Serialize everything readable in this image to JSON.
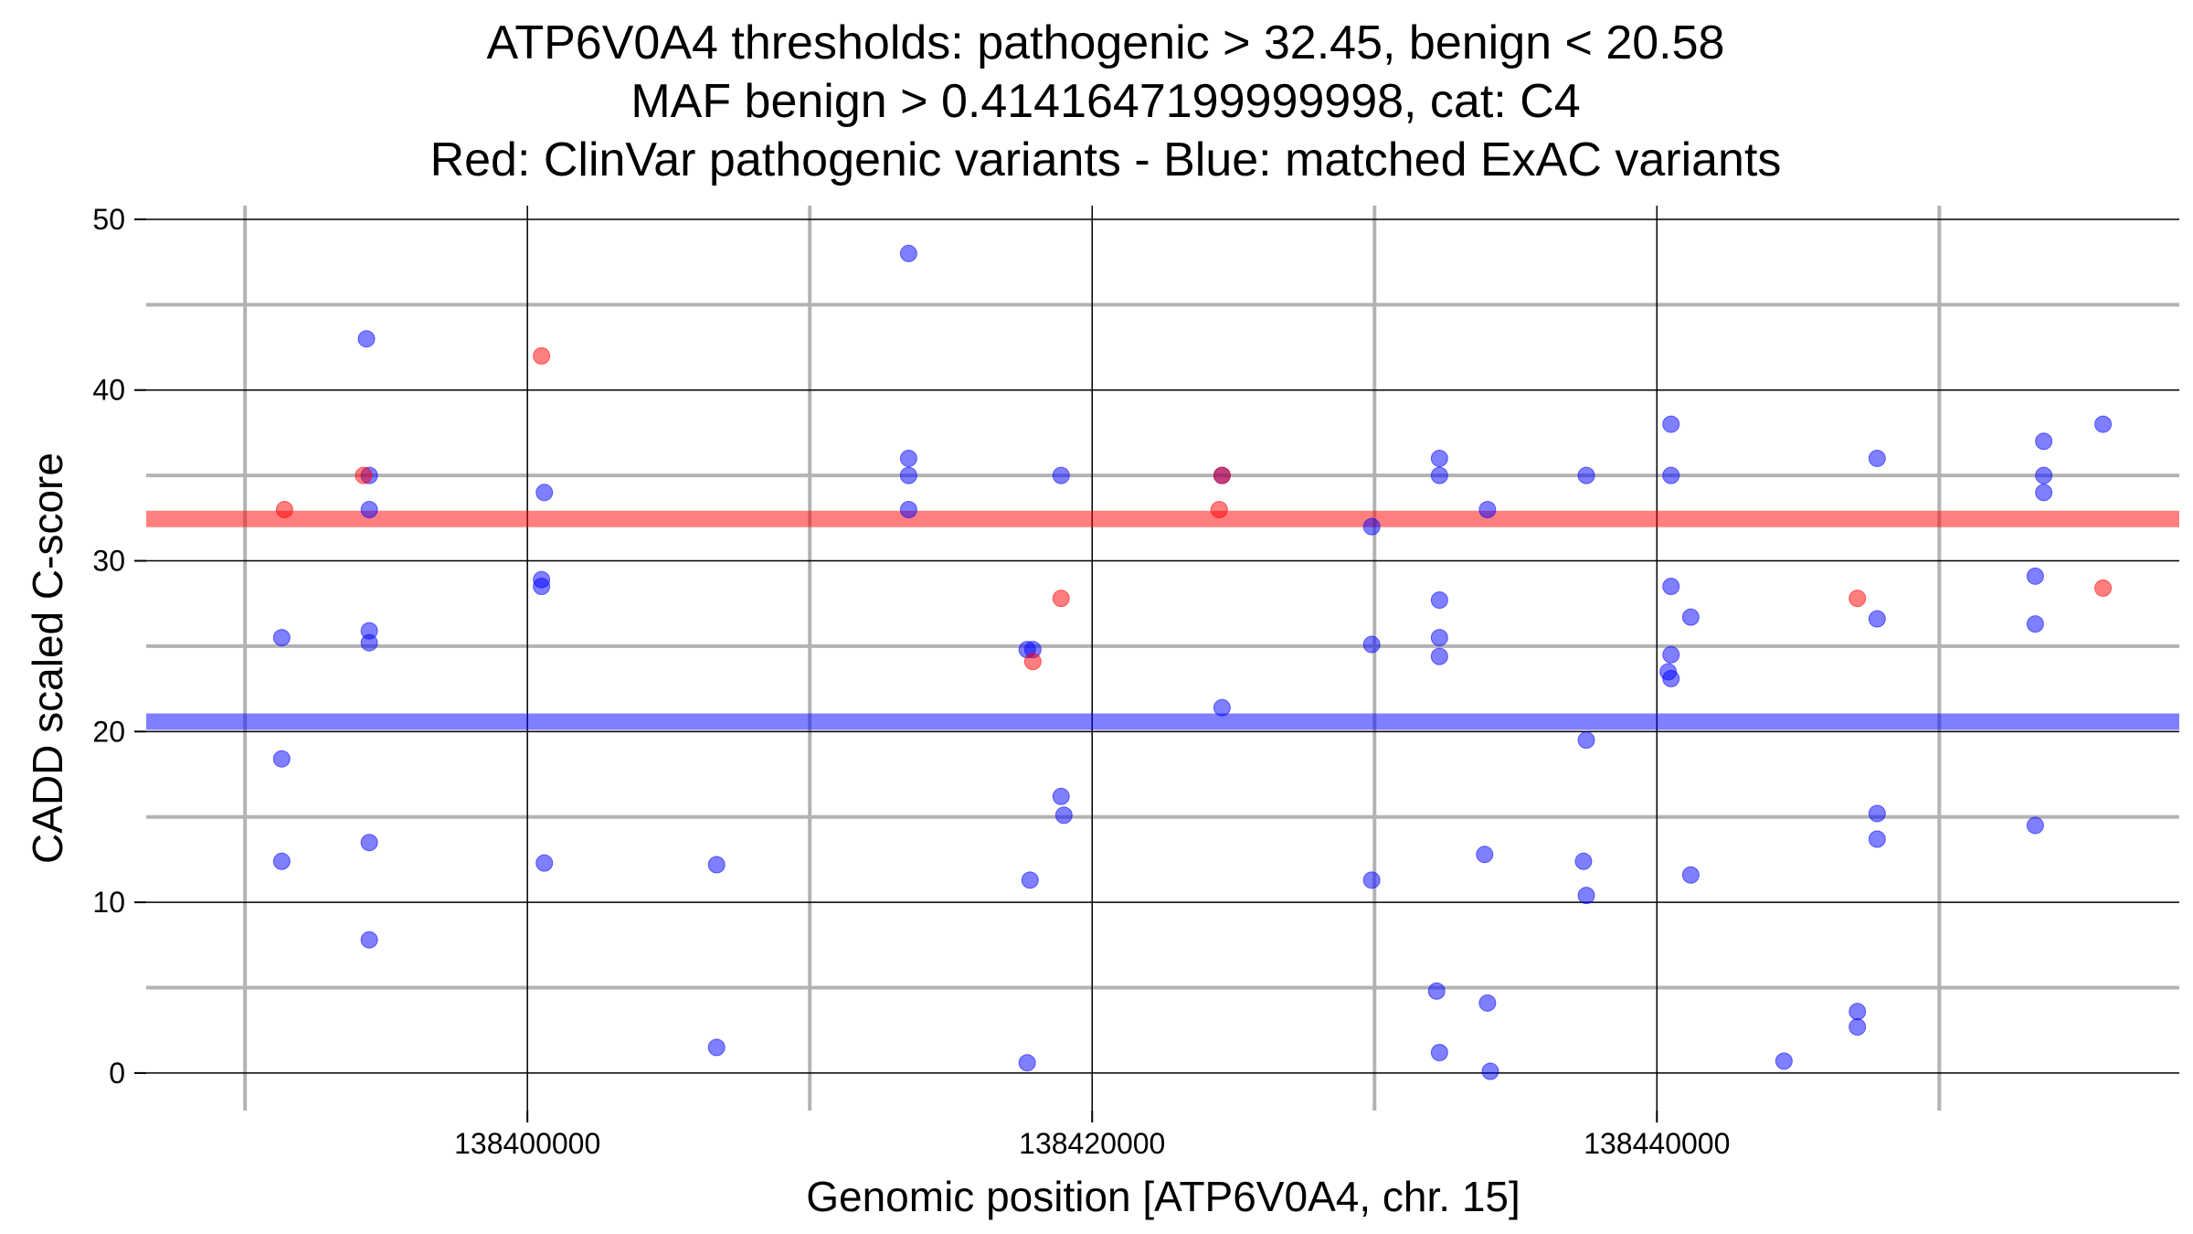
{
  "chart_data": {
    "type": "scatter",
    "title_lines": [
      "ATP6V0A4 thresholds: pathogenic > 32.45, benign < 20.58",
      "MAF benign > 0.4141647199999998, cat: C4",
      "Red: ClinVar pathogenic variants - Blue: matched ExAC variants"
    ],
    "xlabel": "Genomic position [ATP6V0A4, chr. 15]",
    "ylabel": "CADD scaled C-score",
    "xlim": [
      138386500,
      138458500
    ],
    "ylim": [
      -2.2,
      50.8
    ],
    "x_ticks": [
      138400000,
      138420000,
      138440000
    ],
    "x_tick_labels": [
      "138400000",
      "138420000",
      "138440000"
    ],
    "y_ticks": [
      0,
      10,
      20,
      30,
      40,
      50
    ],
    "y_tick_labels": [
      "0",
      "10",
      "20",
      "30",
      "40",
      "50"
    ],
    "x_minor_gridlines": [
      138390000,
      138410000,
      138430000,
      138450000
    ],
    "y_minor_gridlines": [
      5,
      15,
      25,
      35,
      45
    ],
    "grid": true,
    "thresholds": [
      {
        "value": 32.45,
        "color": "#ff0000"
      },
      {
        "value": 20.58,
        "color": "#0000ff"
      }
    ],
    "series": [
      {
        "color": "#0000ff",
        "points": [
          [
            138391300,
            25.5
          ],
          [
            138391300,
            18.4
          ],
          [
            138391300,
            12.4
          ],
          [
            138394300,
            43.0
          ],
          [
            138394400,
            35.0
          ],
          [
            138394400,
            33.0
          ],
          [
            138394400,
            25.9
          ],
          [
            138394400,
            25.2
          ],
          [
            138394400,
            13.5
          ],
          [
            138394400,
            7.8
          ],
          [
            138400600,
            34.0
          ],
          [
            138400500,
            28.9
          ],
          [
            138400500,
            28.5
          ],
          [
            138400600,
            12.3
          ],
          [
            138406700,
            12.2
          ],
          [
            138406700,
            1.5
          ],
          [
            138413500,
            48.0
          ],
          [
            138413500,
            36.0
          ],
          [
            138413500,
            35.0
          ],
          [
            138413500,
            33.0
          ],
          [
            138417700,
            24.8
          ],
          [
            138417900,
            24.8
          ],
          [
            138417800,
            11.3
          ],
          [
            138417700,
            0.6
          ],
          [
            138418900,
            35.0
          ],
          [
            138418900,
            16.2
          ],
          [
            138419000,
            15.1
          ],
          [
            138424600,
            35.0
          ],
          [
            138424600,
            21.4
          ],
          [
            138429900,
            32.0
          ],
          [
            138429900,
            25.1
          ],
          [
            138429900,
            11.3
          ],
          [
            138432300,
            36.0
          ],
          [
            138432300,
            35.0
          ],
          [
            138432300,
            27.7
          ],
          [
            138432300,
            25.5
          ],
          [
            138432300,
            24.4
          ],
          [
            138432200,
            4.8
          ],
          [
            138432300,
            1.2
          ],
          [
            138434000,
            33.0
          ],
          [
            138433900,
            12.8
          ],
          [
            138434000,
            4.1
          ],
          [
            138434100,
            0.1
          ],
          [
            138437500,
            35.0
          ],
          [
            138437500,
            19.5
          ],
          [
            138437400,
            12.4
          ],
          [
            138437500,
            10.4
          ],
          [
            138440500,
            38.0
          ],
          [
            138440500,
            35.0
          ],
          [
            138440500,
            28.5
          ],
          [
            138441200,
            26.7
          ],
          [
            138440500,
            24.5
          ],
          [
            138440400,
            23.5
          ],
          [
            138440500,
            23.1
          ],
          [
            138441200,
            11.6
          ],
          [
            138444500,
            0.7
          ],
          [
            138447800,
            36.0
          ],
          [
            138447800,
            26.6
          ],
          [
            138447800,
            15.2
          ],
          [
            138447800,
            13.7
          ],
          [
            138447100,
            3.6
          ],
          [
            138447100,
            2.7
          ],
          [
            138453700,
            37.0
          ],
          [
            138453700,
            35.0
          ],
          [
            138453700,
            34.0
          ],
          [
            138453400,
            29.1
          ],
          [
            138453400,
            26.3
          ],
          [
            138453400,
            14.5
          ],
          [
            138455800,
            38.0
          ]
        ]
      },
      {
        "color": "#ff0000",
        "points": [
          [
            138391400,
            33.0
          ],
          [
            138394200,
            35.0
          ],
          [
            138400500,
            42.0
          ],
          [
            138418900,
            27.8
          ],
          [
            138417900,
            24.1
          ],
          [
            138424600,
            35.0
          ],
          [
            138424500,
            33.0
          ],
          [
            138447100,
            27.8
          ],
          [
            138455800,
            28.4
          ]
        ]
      }
    ]
  }
}
